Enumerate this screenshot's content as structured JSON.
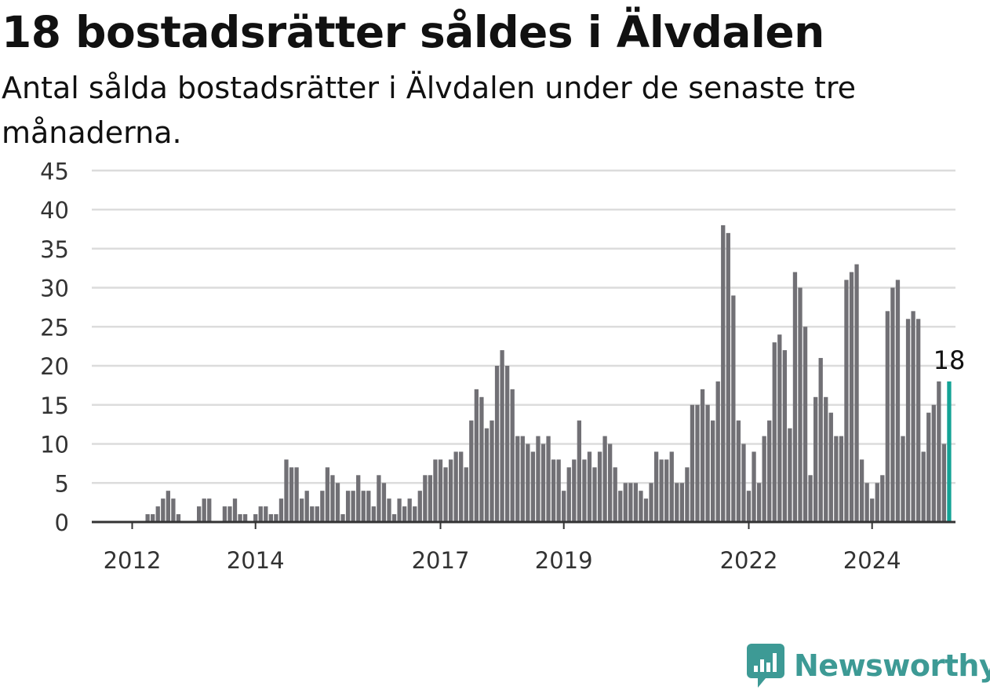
{
  "title": "18 bostadsrätter såldes i Älvdalen",
  "subtitle": "Antal sålda bostadsrätter i Älvdalen under de senaste tre månaderna.",
  "brand": {
    "name": "Newsworthy",
    "color": "#3d9a95",
    "icon": "newsworthy-logo-icon"
  },
  "colors": {
    "bar": "#717075",
    "highlight": "#14a396",
    "grid": "#dcdcdc",
    "axis": "#333333"
  },
  "chart_data": {
    "type": "bar",
    "title": "18 bostadsrätter såldes i Älvdalen",
    "subtitle": "Antal sålda bostadsrätter i Älvdalen under de senaste tre månaderna.",
    "xlabel": "",
    "ylabel": "",
    "ylim": [
      0,
      45
    ],
    "yticks": [
      0,
      5,
      10,
      15,
      20,
      25,
      30,
      35,
      40,
      45
    ],
    "xticks": [
      {
        "label": "2012",
        "index": 5
      },
      {
        "label": "2014",
        "index": 29
      },
      {
        "label": "2017",
        "index": 65
      },
      {
        "label": "2019",
        "index": 89
      },
      {
        "label": "2022",
        "index": 125
      },
      {
        "label": "2024",
        "index": 149
      }
    ],
    "grid": true,
    "start_month": "2011-08",
    "end_month": "2024-09",
    "values": [
      0,
      0,
      0,
      0,
      0,
      0,
      0,
      0,
      1,
      1,
      2,
      3,
      4,
      3,
      1,
      0,
      0,
      0,
      2,
      3,
      3,
      0,
      0,
      2,
      2,
      3,
      1,
      1,
      0,
      1,
      2,
      2,
      1,
      1,
      3,
      8,
      7,
      7,
      3,
      4,
      2,
      2,
      4,
      7,
      6,
      5,
      1,
      4,
      4,
      6,
      4,
      4,
      2,
      6,
      5,
      3,
      1,
      3,
      2,
      3,
      2,
      4,
      6,
      6,
      8,
      8,
      7,
      8,
      9,
      9,
      7,
      13,
      17,
      16,
      12,
      13,
      20,
      22,
      20,
      17,
      11,
      11,
      10,
      9,
      11,
      10,
      11,
      8,
      8,
      4,
      7,
      8,
      13,
      8,
      9,
      7,
      9,
      11,
      10,
      7,
      4,
      5,
      5,
      5,
      4,
      3,
      5,
      9,
      8,
      8,
      9,
      5,
      5,
      7,
      15,
      15,
      17,
      15,
      13,
      18,
      38,
      37,
      29,
      13,
      10,
      4,
      9,
      5,
      11,
      13,
      23,
      24,
      22,
      12,
      32,
      30,
      25,
      6,
      16,
      21,
      16,
      14,
      11,
      11,
      31,
      32,
      33,
      8,
      5,
      3,
      5,
      6,
      27,
      30,
      31,
      11,
      26,
      27,
      26,
      9,
      14,
      15,
      18,
      10,
      18
    ],
    "highlight_index": 164,
    "highlight_label": "18"
  }
}
